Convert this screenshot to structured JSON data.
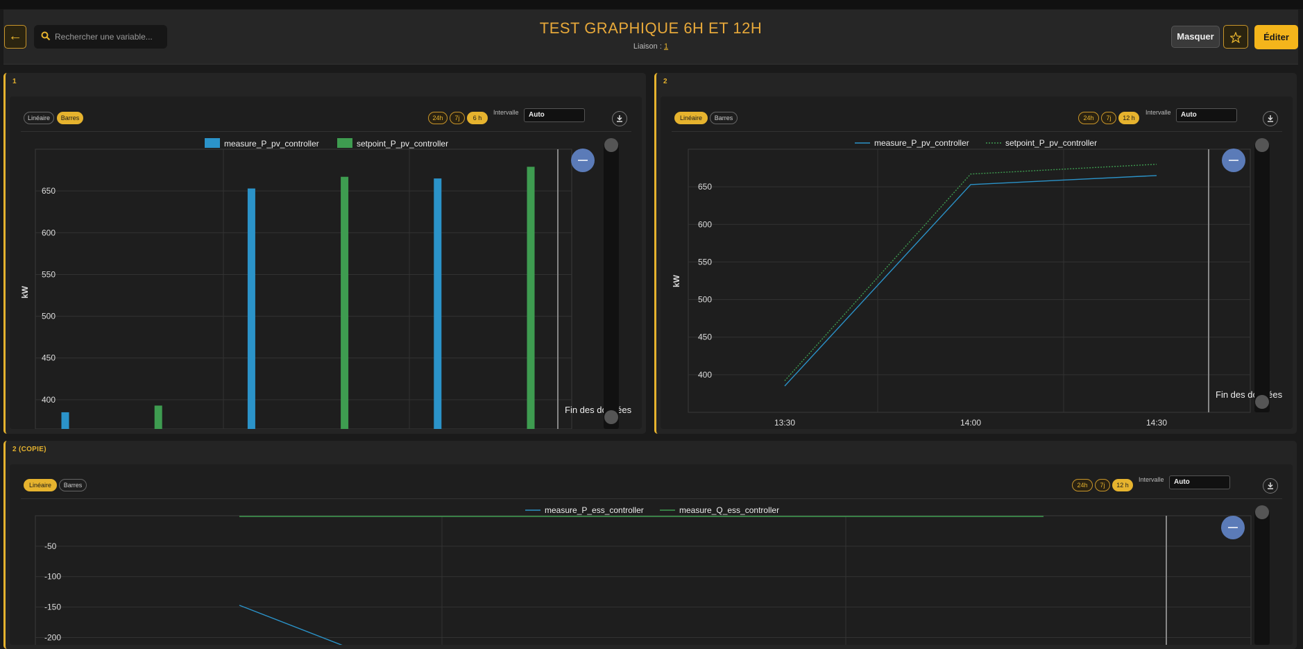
{
  "header": {
    "back_icon": "arrow-left-icon",
    "search_placeholder": "Rechercher une variable...",
    "title": "TEST GRAPHIQUE 6H ET 12H",
    "liaison_label": "Liaison :",
    "liaison_value": "1",
    "masquer_label": "Masquer",
    "star_icon": "star-icon",
    "edit_label": "Éditer"
  },
  "colors": {
    "accent": "#e6b32e",
    "series_blue": "#2b93c9",
    "series_green": "#3e9c50",
    "zoom_button": "#5b7bb8"
  },
  "panels": [
    {
      "label": "1",
      "mode_linear": "Linéaire",
      "mode_bars": "Barres",
      "active_mode": "Barres",
      "ranges": [
        "24h",
        "7j",
        "6 h"
      ],
      "active_range": "6 h",
      "interval_label": "Intervalle",
      "interval_value": "Auto",
      "end_label": "Fin des données",
      "unit": "kW"
    },
    {
      "label": "2",
      "mode_linear": "Linéaire",
      "mode_bars": "Barres",
      "active_mode": "Linéaire",
      "ranges": [
        "24h",
        "7j",
        "12 h"
      ],
      "active_range": "12 h",
      "interval_label": "Intervalle",
      "interval_value": "Auto",
      "end_label": "Fin des données",
      "unit": "kW"
    },
    {
      "label": "2 (COPIE)",
      "mode_linear": "Linéaire",
      "mode_bars": "Barres",
      "active_mode": "Linéaire",
      "ranges": [
        "24h",
        "7j",
        "12 h"
      ],
      "active_range": "12 h",
      "interval_label": "Intervalle",
      "interval_value": "Auto"
    }
  ],
  "chart_data": [
    {
      "type": "bar",
      "ylabel": "kW",
      "yticks": [
        400,
        450,
        500,
        550,
        600,
        650
      ],
      "ylim": [
        365,
        700
      ],
      "legend": "top",
      "grid": true,
      "series": [
        {
          "name": "measure_P_pv_controller",
          "color": "#2b93c9",
          "x": [
            0,
            2,
            4
          ],
          "values": [
            385,
            653,
            665
          ]
        },
        {
          "name": "setpoint_P_pv_controller",
          "color": "#3e9c50",
          "x": [
            1,
            3,
            5
          ],
          "values": [
            393,
            667,
            679
          ]
        }
      ]
    },
    {
      "type": "line",
      "ylabel": "kW",
      "yticks": [
        400,
        450,
        500,
        550,
        600,
        650
      ],
      "xticks": [
        "13:30",
        "14:00",
        "14:30"
      ],
      "ylim": [
        350,
        700
      ],
      "legend": "top",
      "grid": true,
      "series": [
        {
          "name": "measure_P_pv_controller",
          "color": "#2b93c9",
          "style": "solid",
          "x": [
            "13:30",
            "14:00",
            "14:30"
          ],
          "values": [
            385,
            653,
            665
          ]
        },
        {
          "name": "setpoint_P_pv_controller",
          "color": "#3e9c50",
          "style": "dotted",
          "x": [
            "13:30",
            "14:00",
            "14:30"
          ],
          "values": [
            392,
            667,
            680
          ]
        }
      ]
    },
    {
      "type": "line",
      "yticks": [
        -50,
        -100,
        -150,
        -200
      ],
      "ylim": [
        -212,
        0
      ],
      "legend": "top",
      "grid": true,
      "series": [
        {
          "name": "measure_P_ess_controller",
          "color": "#2b93c9",
          "style": "solid",
          "values": [
            -147,
            -213
          ]
        },
        {
          "name": "measure_Q_ess_controller",
          "color": "#3e9c50",
          "style": "solid",
          "values": [
            0,
            0
          ]
        }
      ]
    }
  ]
}
